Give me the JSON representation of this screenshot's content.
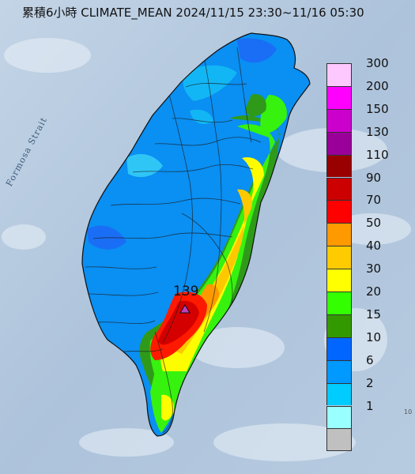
{
  "title": "累積6小時 CLIMATE_MEAN 2024/11/15 23:30~11/16 05:30",
  "sea_label": "Formosa Strait",
  "edge_label": "10",
  "max_marker": {
    "value": "139",
    "icon": "triangle-icon",
    "color": "#c040c0"
  },
  "legend": {
    "items": [
      {
        "label": "300",
        "color": "#fdc8fe"
      },
      {
        "label": "200",
        "color": "#fe00fe"
      },
      {
        "label": "150",
        "color": "#cc00cc"
      },
      {
        "label": "130",
        "color": "#9a0099"
      },
      {
        "label": "110",
        "color": "#990000"
      },
      {
        "label": "90",
        "color": "#cc0000"
      },
      {
        "label": "70",
        "color": "#fe0000"
      },
      {
        "label": "50",
        "color": "#fe9900"
      },
      {
        "label": "40",
        "color": "#fecb00"
      },
      {
        "label": "30",
        "color": "#ffff00"
      },
      {
        "label": "20",
        "color": "#33ff00"
      },
      {
        "label": "15",
        "color": "#339900"
      },
      {
        "label": "10",
        "color": "#0066ff"
      },
      {
        "label": "6",
        "color": "#0099ff"
      },
      {
        "label": "2",
        "color": "#00ccff"
      },
      {
        "label": "1",
        "color": "#99ffff"
      },
      {
        "label": "",
        "color": "#c0c0c0"
      }
    ]
  }
}
